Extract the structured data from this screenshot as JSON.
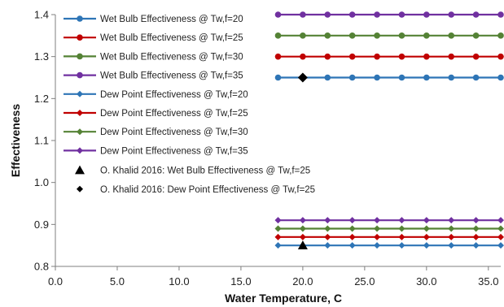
{
  "chart_data": {
    "type": "scatter",
    "xlabel": "Water Temperature, C",
    "ylabel": "Effectiveness",
    "xlim": [
      0,
      36
    ],
    "ylim": [
      0.8,
      1.4
    ],
    "x_ticks": [
      "0.0",
      "5.0",
      "10.0",
      "15.0",
      "20.0",
      "25.0",
      "30.0",
      "35.0"
    ],
    "y_ticks": [
      "0.8",
      "0.9",
      "1.0",
      "1.1",
      "1.2",
      "1.3",
      "1.4"
    ],
    "grid": false,
    "legend_position": "top-left",
    "x": [
      18,
      20,
      22,
      24,
      26,
      28,
      30,
      32,
      34,
      36
    ],
    "series": [
      {
        "name": "Wet Bulb Effectiveness @ Tw,f=20",
        "color": "#2e75b6",
        "marker": "circle",
        "values": [
          1.25,
          1.25,
          1.25,
          1.25,
          1.25,
          1.25,
          1.25,
          1.25,
          1.25,
          1.25
        ]
      },
      {
        "name": "Wet Bulb Effectiveness @ Tw,f=25",
        "color": "#c00000",
        "marker": "circle",
        "values": [
          1.3,
          1.3,
          1.3,
          1.3,
          1.3,
          1.3,
          1.3,
          1.3,
          1.3,
          1.3
        ]
      },
      {
        "name": "Wet Bulb Effectiveness @ Tw,f=30",
        "color": "#548235",
        "marker": "circle",
        "values": [
          1.35,
          1.35,
          1.35,
          1.35,
          1.35,
          1.35,
          1.35,
          1.35,
          1.35,
          1.35
        ]
      },
      {
        "name": "Wet Bulb Effectiveness @ Tw,f=35",
        "color": "#7030a0",
        "marker": "circle",
        "values": [
          1.4,
          1.4,
          1.4,
          1.4,
          1.4,
          1.4,
          1.4,
          1.4,
          1.4,
          1.4
        ]
      },
      {
        "name": "Dew Point Effectiveness @ Tw,f=20",
        "color": "#2e75b6",
        "marker": "diamond",
        "values": [
          0.85,
          0.85,
          0.85,
          0.85,
          0.85,
          0.85,
          0.85,
          0.85,
          0.85,
          0.85
        ]
      },
      {
        "name": "Dew Point Effectiveness @ Tw,f=25",
        "color": "#c00000",
        "marker": "diamond",
        "values": [
          0.87,
          0.87,
          0.87,
          0.87,
          0.87,
          0.87,
          0.87,
          0.87,
          0.87,
          0.87
        ]
      },
      {
        "name": "Dew Point Effectiveness @ Tw,f=30",
        "color": "#548235",
        "marker": "diamond",
        "values": [
          0.89,
          0.89,
          0.89,
          0.89,
          0.89,
          0.89,
          0.89,
          0.89,
          0.89,
          0.89
        ]
      },
      {
        "name": "Dew Point Effectiveness @ Tw,f=35",
        "color": "#7030a0",
        "marker": "diamond",
        "values": [
          0.91,
          0.91,
          0.91,
          0.91,
          0.91,
          0.91,
          0.91,
          0.91,
          0.91,
          0.91
        ]
      }
    ],
    "reference_points": [
      {
        "name": "O. Khalid 2016: Wet Bulb Effectiveness @ Tw,f=25",
        "color": "#000000",
        "marker": "triangle",
        "x": 20,
        "y": 0.85
      },
      {
        "name": "O. Khalid 2016: Dew Point Effectiveness @ Tw,f=25",
        "color": "#000000",
        "marker": "diamond-large",
        "x": 20,
        "y": 1.25
      }
    ]
  }
}
